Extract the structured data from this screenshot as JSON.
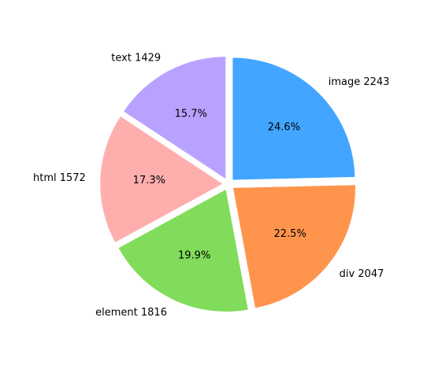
{
  "chart_data": {
    "type": "pie",
    "slices": [
      {
        "name": "image",
        "value": 2243,
        "label": "image 2243",
        "pct_label": "24.6%",
        "color": "#42a5ff"
      },
      {
        "name": "div",
        "value": 2047,
        "label": "div 2047",
        "pct_label": "22.5%",
        "color": "#ff944d"
      },
      {
        "name": "element",
        "value": 1816,
        "label": "element 1816",
        "pct_label": "19.9%",
        "color": "#80dc5a"
      },
      {
        "name": "html",
        "value": 1572,
        "label": "html 1572",
        "pct_label": "17.3%",
        "color": "#ffaeae"
      },
      {
        "name": "text",
        "value": 1429,
        "label": "text 1429",
        "pct_label": "15.7%",
        "color": "#b9a2ff"
      }
    ],
    "start_angle_deg": 90,
    "direction": "clockwise",
    "explode": true,
    "legend": "none"
  }
}
